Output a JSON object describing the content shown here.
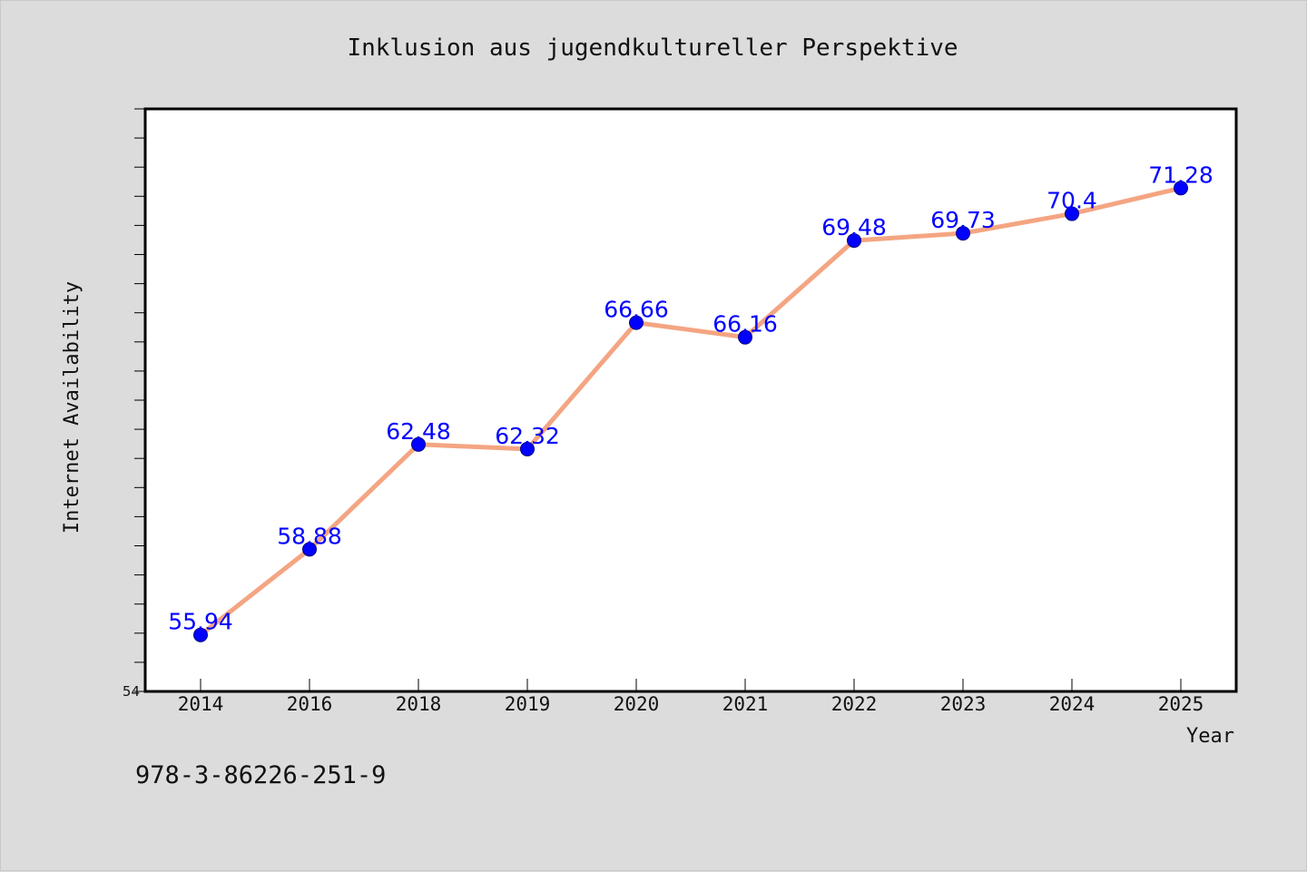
{
  "chart_data": {
    "type": "line",
    "title": "Inklusion aus jugendkultureller Perspektive",
    "xlabel": "Year",
    "ylabel": "Internet Availability",
    "categories": [
      "2014",
      "2016",
      "2018",
      "2019",
      "2020",
      "2021",
      "2022",
      "2023",
      "2024",
      "2025"
    ],
    "series": [
      {
        "values": [
          55.94,
          58.88,
          62.48,
          62.32,
          66.66,
          66.16,
          69.48,
          69.73,
          70.4,
          71.28
        ],
        "line_color": "#f4a582",
        "marker_color": "#0000ff"
      }
    ],
    "data_labels": [
      "55.94",
      "58.88",
      "62.48",
      "62.32",
      "66.66",
      "66.16",
      "69.48",
      "69.73",
      "70.4",
      "71.28"
    ],
    "ylim": [
      54,
      74
    ],
    "y_tick_step": 1,
    "y_tick_labels": [
      "54"
    ],
    "grid": false,
    "legend": "none"
  },
  "footer": {
    "isbn": "978-3-86226-251-9"
  },
  "colors": {
    "background": "#dcdcdc",
    "plot_background": "#ffffff",
    "axis": "#000000"
  }
}
